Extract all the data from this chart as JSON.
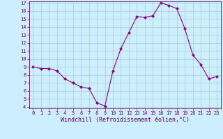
{
  "x": [
    0,
    1,
    2,
    3,
    4,
    5,
    6,
    7,
    8,
    9,
    10,
    11,
    12,
    13,
    14,
    15,
    16,
    17,
    18,
    19,
    20,
    21,
    22,
    23
  ],
  "y": [
    9.0,
    8.8,
    8.8,
    8.5,
    7.5,
    7.0,
    6.5,
    6.3,
    4.5,
    4.1,
    8.5,
    11.3,
    13.3,
    15.3,
    15.2,
    15.4,
    17.0,
    16.7,
    16.3,
    13.8,
    10.5,
    9.3,
    7.5,
    7.8
  ],
  "line_color": "#880088",
  "marker": "D",
  "marker_size": 2.0,
  "bg_color": "#cceeff",
  "grid_color": "#aacccc",
  "xlabel": "Windchill (Refroidissement éolien,°C)",
  "ylim_min": 4,
  "ylim_max": 17,
  "xlim_min": -0.5,
  "xlim_max": 23.5,
  "yticks": [
    4,
    5,
    6,
    7,
    8,
    9,
    10,
    11,
    12,
    13,
    14,
    15,
    16,
    17
  ],
  "xticks": [
    0,
    1,
    2,
    3,
    4,
    5,
    6,
    7,
    8,
    9,
    10,
    11,
    12,
    13,
    14,
    15,
    16,
    17,
    18,
    19,
    20,
    21,
    22,
    23
  ],
  "tick_fontsize": 5.0,
  "xlabel_fontsize": 6.0,
  "label_color": "#660066",
  "line_width": 0.8
}
